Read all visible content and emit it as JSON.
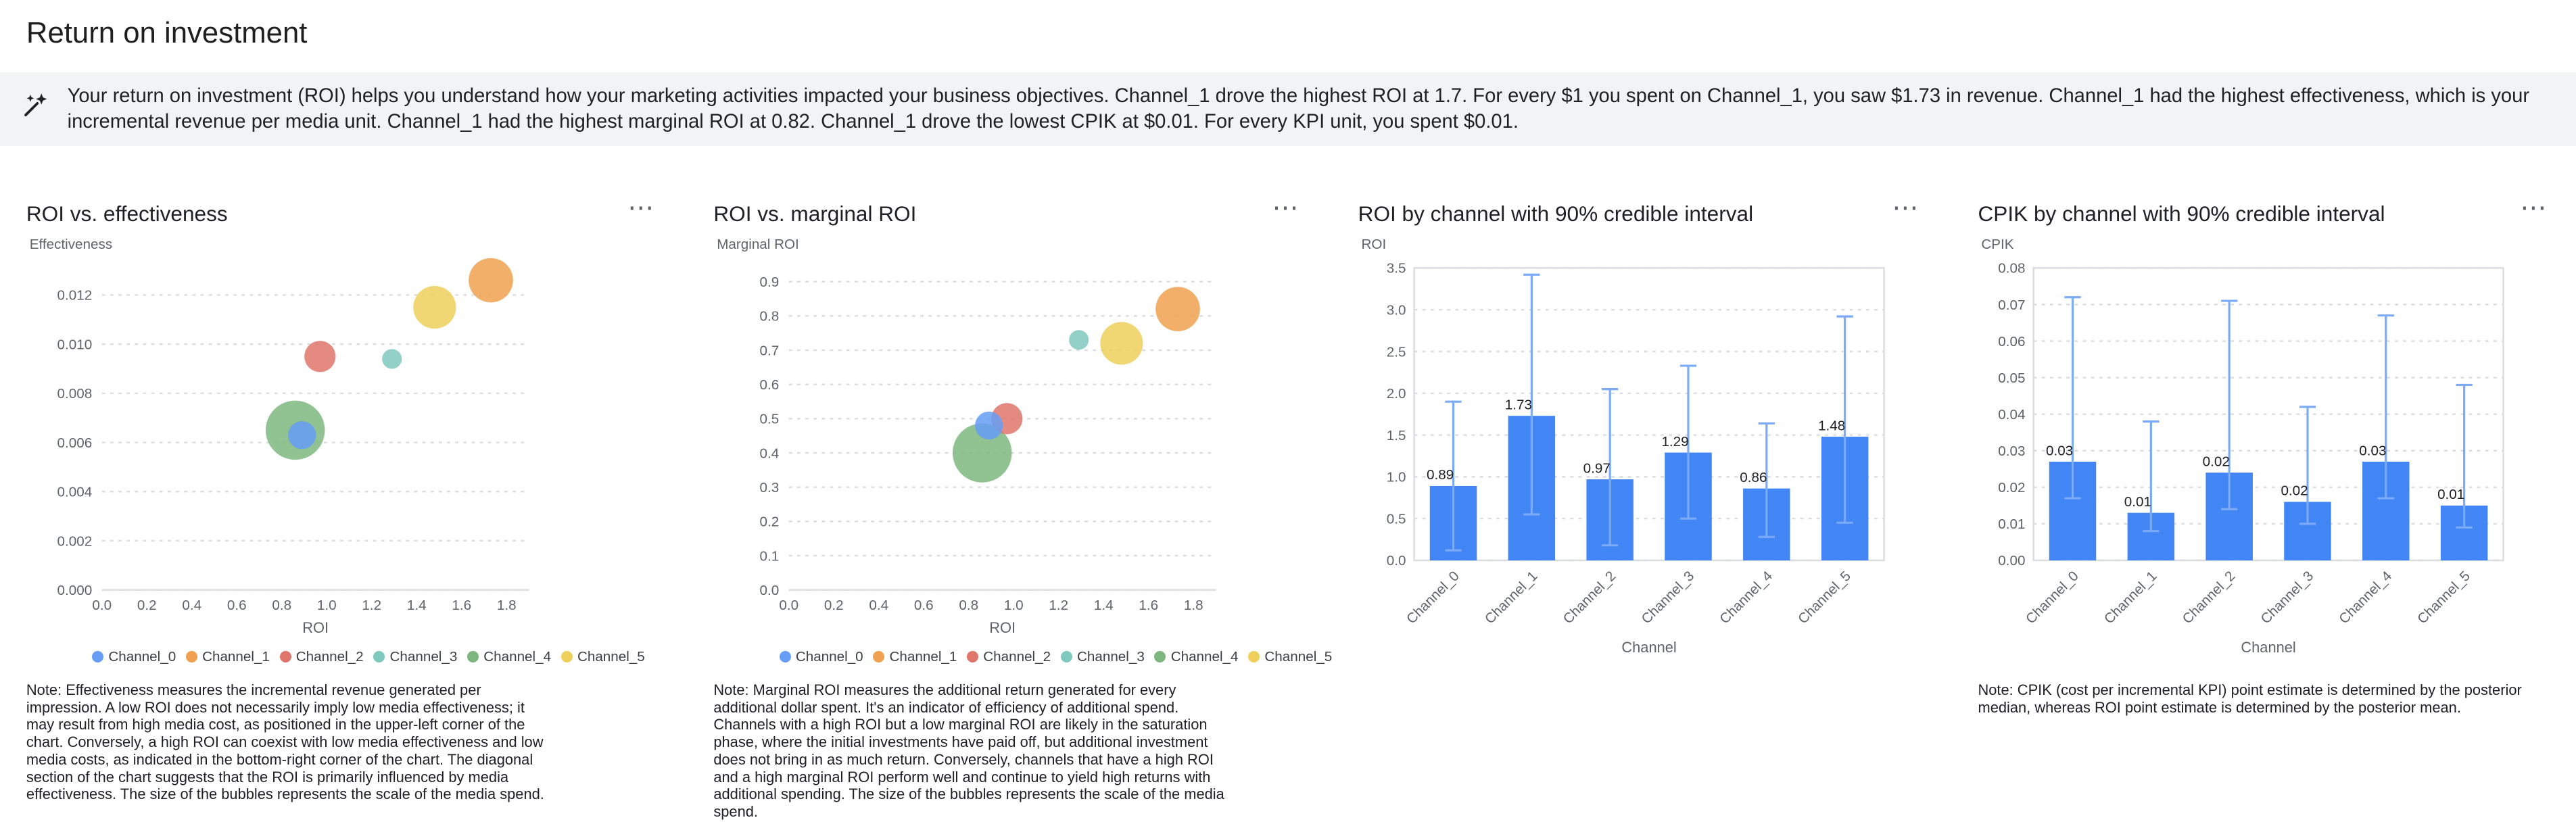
{
  "page": {
    "title": "Return on investment"
  },
  "insights": {
    "text": "Your return on investment (ROI) helps you understand how your marketing activities impacted your business objectives. Channel_1 drove the highest ROI at 1.7. For every $1 you spent on Channel_1, you saw $1.73 in revenue. Channel_1 had the highest effectiveness, which is your incremental revenue per media unit. Channel_1 had the highest marginal ROI at 0.82. Channel_1 drove the lowest CPIK at $0.01. For every KPI unit, you spent $0.01."
  },
  "icons": {
    "more_options_glyph": "⋯",
    "insights_icon": "magic-wand-sparkle"
  },
  "colors": {
    "bar": "#4285F4",
    "error_bar": "#7BAAF7",
    "grid": "#DADCE0",
    "axis_text": "#5F6368",
    "label_text": "#202124",
    "channels": {
      "Channel_0": "#669DF6",
      "Channel_1": "#EFA14F",
      "Channel_2": "#E0756B",
      "Channel_3": "#7FC8BE",
      "Channel_4": "#7DB77F",
      "Channel_5": "#EFCF5C"
    }
  },
  "chart_data": [
    {
      "type": "scatter",
      "title": "ROI vs. effectiveness",
      "xlabel": "ROI",
      "ylabel": "Effectiveness",
      "xlim": [
        0,
        1.9
      ],
      "ylim": [
        0,
        0.0131
      ],
      "xticks": [
        "0.0",
        "0.2",
        "0.4",
        "0.6",
        "0.8",
        "1.0",
        "1.2",
        "1.4",
        "1.6",
        "1.8"
      ],
      "yticks": [
        "0.000",
        "0.002",
        "0.004",
        "0.006",
        "0.008",
        "0.010",
        "0.012"
      ],
      "points": [
        {
          "name": "Channel_0",
          "x": 0.89,
          "y": 0.0063,
          "size": 8.5
        },
        {
          "name": "Channel_1",
          "x": 1.73,
          "y": 0.0126,
          "size": 13.5
        },
        {
          "name": "Channel_2",
          "x": 0.97,
          "y": 0.0095,
          "size": 9.5
        },
        {
          "name": "Channel_3",
          "x": 1.29,
          "y": 0.0094,
          "size": 6
        },
        {
          "name": "Channel_4",
          "x": 0.86,
          "y": 0.0065,
          "size": 18
        },
        {
          "name": "Channel_5",
          "x": 1.48,
          "y": 0.0115,
          "size": 13
        }
      ],
      "note": "Note: Effectiveness measures the incremental revenue generated per impression. A low ROI does not necessarily imply low media effectiveness; it may result from high media cost, as positioned in the upper-left corner of the chart. Conversely, a high ROI can coexist with low media effectiveness and low media costs, as indicated in the bottom-right corner of the chart. The diagonal section of the chart suggests that the ROI is primarily influenced by media effectiveness. The size of the bubbles represents the scale of the media spend."
    },
    {
      "type": "scatter",
      "title": "ROI vs. marginal ROI",
      "xlabel": "ROI",
      "ylabel": "Marginal ROI",
      "xlim": [
        0,
        1.9
      ],
      "ylim": [
        0,
        0.94
      ],
      "xticks": [
        "0.0",
        "0.2",
        "0.4",
        "0.6",
        "0.8",
        "1.0",
        "1.2",
        "1.4",
        "1.6",
        "1.8"
      ],
      "yticks": [
        "0.0",
        "0.1",
        "0.2",
        "0.3",
        "0.4",
        "0.5",
        "0.6",
        "0.7",
        "0.8",
        "0.9"
      ],
      "points": [
        {
          "name": "Channel_0",
          "x": 0.89,
          "y": 0.48,
          "size": 8.5
        },
        {
          "name": "Channel_1",
          "x": 1.73,
          "y": 0.82,
          "size": 13.5
        },
        {
          "name": "Channel_2",
          "x": 0.97,
          "y": 0.5,
          "size": 9.5
        },
        {
          "name": "Channel_3",
          "x": 1.29,
          "y": 0.73,
          "size": 6
        },
        {
          "name": "Channel_4",
          "x": 0.86,
          "y": 0.4,
          "size": 18
        },
        {
          "name": "Channel_5",
          "x": 1.48,
          "y": 0.72,
          "size": 13
        }
      ],
      "note": "Note: Marginal ROI measures the additional return generated for every additional dollar spent. It's an indicator of efficiency of additional spend. Channels with a high ROI but a low marginal ROI are likely in the saturation phase, where the initial investments have paid off, but additional investment does not bring in as much return. Conversely, channels that have a high ROI and a high marginal ROI perform well and continue to yield high returns with additional spending. The size of the bubbles represents the scale of the media spend."
    },
    {
      "type": "bar",
      "title": "ROI by channel with 90% credible interval",
      "xlabel": "Channel",
      "ylabel": "ROI",
      "ylim": [
        0,
        3.5
      ],
      "yticks": [
        "0.0",
        "0.5",
        "1.0",
        "1.5",
        "2.0",
        "2.5",
        "3.0",
        "3.5"
      ],
      "categories": [
        "Channel_0",
        "Channel_1",
        "Channel_2",
        "Channel_3",
        "Channel_4",
        "Channel_5"
      ],
      "values": [
        0.89,
        1.73,
        0.97,
        1.29,
        0.86,
        1.48
      ],
      "labels": [
        "0.89",
        "1.73",
        "0.97",
        "1.29",
        "0.86",
        "1.48"
      ],
      "ci_low": [
        0.12,
        0.55,
        0.18,
        0.5,
        0.28,
        0.45
      ],
      "ci_high": [
        1.9,
        3.42,
        2.05,
        2.33,
        1.64,
        2.92
      ],
      "note": ""
    },
    {
      "type": "bar",
      "title": "CPIK by channel with 90% credible interval",
      "xlabel": "Channel",
      "ylabel": "CPIK",
      "ylim": [
        0,
        0.08
      ],
      "yticks": [
        "0.00",
        "0.01",
        "0.02",
        "0.03",
        "0.04",
        "0.05",
        "0.06",
        "0.07",
        "0.08"
      ],
      "categories": [
        "Channel_0",
        "Channel_1",
        "Channel_2",
        "Channel_3",
        "Channel_4",
        "Channel_5"
      ],
      "values": [
        0.027,
        0.013,
        0.024,
        0.016,
        0.027,
        0.015
      ],
      "labels": [
        "0.03",
        "0.01",
        "0.02",
        "0.02",
        "0.03",
        "0.01"
      ],
      "ci_low": [
        0.017,
        0.008,
        0.014,
        0.01,
        0.017,
        0.009
      ],
      "ci_high": [
        0.072,
        0.038,
        0.071,
        0.042,
        0.067,
        0.048
      ],
      "note": "Note: CPIK (cost per incremental KPI) point estimate is determined by the posterior median, whereas ROI point estimate is determined by the posterior mean."
    }
  ]
}
